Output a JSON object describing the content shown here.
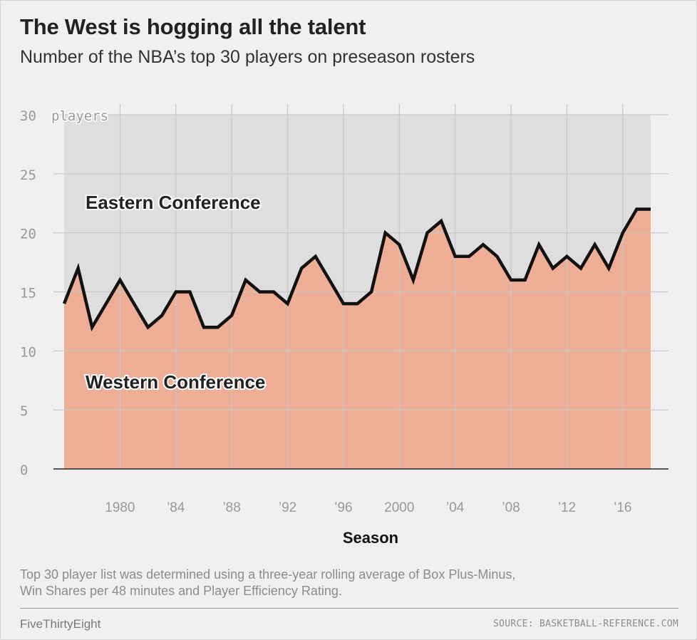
{
  "header": {
    "title": "The West is hogging all the talent",
    "subtitle": "Number of the NBA’s top 30 players on preseason rosters"
  },
  "footer": {
    "note_line1": "Top 30 player list was determined using a three-year rolling average of Box Plus-Minus,",
    "note_line2": "Win Shares per 48 minutes and Player Efficiency Rating.",
    "brand": "FiveThirtyEight",
    "source": "SOURCE: BASKETBALL-REFERENCE.COM"
  },
  "colors": {
    "west_fill": "#edae95",
    "east_fill": "#dedede",
    "line": "#111111",
    "grid": "#c8c8c8",
    "axis_text": "#999999"
  },
  "chart_data": {
    "type": "area",
    "xlabel": "Season",
    "ylabel": "",
    "y_unit_label": "players",
    "ylim": [
      0,
      30
    ],
    "xlim": [
      1976,
      2018
    ],
    "grid": true,
    "y_ticks": [
      0,
      5,
      10,
      15,
      20,
      25,
      30
    ],
    "y_tick_labels": [
      "0",
      "5",
      "10",
      "15",
      "20",
      "25",
      "30"
    ],
    "x_ticks": [
      1980,
      1984,
      1988,
      1992,
      1996,
      2000,
      2004,
      2008,
      2012,
      2016
    ],
    "x_tick_labels": [
      "1980",
      "’84",
      "’88",
      "’92",
      "’96",
      "2000",
      "’04",
      "’08",
      "’12",
      "’16"
    ],
    "x": [
      1976,
      1977,
      1978,
      1979,
      1980,
      1981,
      1982,
      1983,
      1984,
      1985,
      1986,
      1987,
      1988,
      1989,
      1990,
      1991,
      1992,
      1993,
      1994,
      1995,
      1996,
      1997,
      1998,
      1999,
      2000,
      2001,
      2002,
      2003,
      2004,
      2005,
      2006,
      2007,
      2008,
      2009,
      2010,
      2011,
      2012,
      2013,
      2014,
      2015,
      2016,
      2017,
      2018
    ],
    "series": [
      {
        "name": "Western Conference",
        "values": [
          14,
          17,
          12,
          14,
          16,
          14,
          12,
          13,
          15,
          15,
          12,
          12,
          13,
          16,
          15,
          15,
          14,
          17,
          18,
          16,
          14,
          14,
          15,
          20,
          19,
          16,
          20,
          21,
          18,
          18,
          19,
          18,
          16,
          16,
          19,
          17,
          18,
          17,
          19,
          17,
          20,
          22,
          22
        ]
      }
    ],
    "region_labels": {
      "upper": "Eastern Conference",
      "lower": "Western Conference"
    }
  }
}
